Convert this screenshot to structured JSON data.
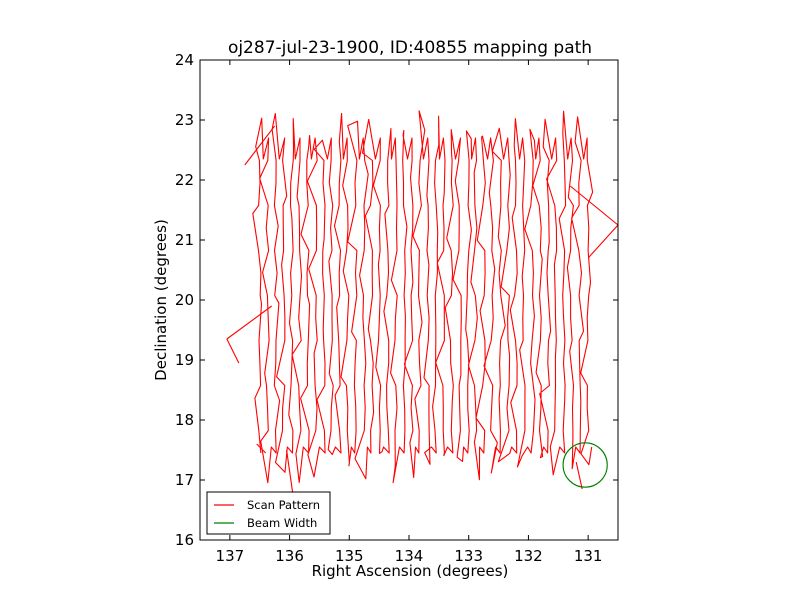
{
  "chart_data": {
    "type": "line",
    "title": "oj287-jul-23-1900, ID:40855 mapping path",
    "xlabel": "Right Ascension (degrees)",
    "ylabel": "Declination (degrees)",
    "xlim": [
      137.5,
      130.5
    ],
    "ylim": [
      16,
      24
    ],
    "x_inverted": true,
    "xticks": [
      "137",
      "136",
      "135",
      "134",
      "133",
      "132",
      "131"
    ],
    "yticks": [
      "16",
      "17",
      "18",
      "19",
      "20",
      "21",
      "22",
      "23",
      "24"
    ],
    "grid": false,
    "legend_position": "lower-left",
    "series": [
      {
        "name": "Scan Pattern",
        "color": "#ff0000",
        "description_ra_range": [
          136.5,
          131.0
        ],
        "dec_range": [
          16.9,
          23.2
        ],
        "scan_columns": 42,
        "anchor_points": [
          {
            "x": 136.75,
            "y": 22.25
          },
          {
            "x": 137.05,
            "y": 19.35
          },
          {
            "x": 136.55,
            "y": 17.6
          },
          {
            "x": 130.5,
            "y": 21.25
          },
          {
            "x": 131.1,
            "y": 16.85
          },
          {
            "x": 135.95,
            "y": 16.8
          }
        ]
      },
      {
        "name": "Beam Width",
        "color": "#008000",
        "center": {
          "x": 131.05,
          "y": 17.25
        },
        "radius_deg": 0.37
      }
    ]
  }
}
